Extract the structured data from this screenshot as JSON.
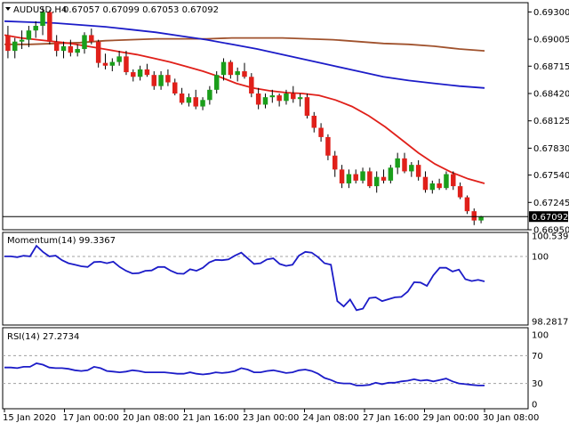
{
  "header": {
    "symbol_tf": "AUDUSD,H4",
    "ohlc": "0.67057 0.67099 0.67053 0.67092"
  },
  "price_axis": {
    "ticks": [
      "0.69300",
      "0.69005",
      "0.68715",
      "0.68420",
      "0.68125",
      "0.67830",
      "0.67540",
      "0.67245",
      "0.66950"
    ],
    "tick_values": [
      0.693,
      0.69005,
      0.68715,
      0.6842,
      0.68125,
      0.6783,
      0.6754,
      0.67245,
      0.6695
    ],
    "current_label": "0.67092",
    "current_value": 0.67092
  },
  "momentum": {
    "label": "Momentum(14) 99.3367",
    "ticks": [
      "100.5396",
      "100",
      "98.2817"
    ],
    "tick_values": [
      100.5396,
      100,
      98.2817
    ],
    "series": [
      100.0,
      100.0,
      99.98,
      100.02,
      100.0,
      100.28,
      100.12,
      100.0,
      100.02,
      99.9,
      99.82,
      99.78,
      99.74,
      99.72,
      99.85,
      99.86,
      99.82,
      99.86,
      99.72,
      99.62,
      99.55,
      99.56,
      99.62,
      99.63,
      99.72,
      99.72,
      99.62,
      99.55,
      99.54,
      99.66,
      99.62,
      99.7,
      99.84,
      99.91,
      99.9,
      99.92,
      100.02,
      100.1,
      99.95,
      99.8,
      99.82,
      99.92,
      99.95,
      99.8,
      99.75,
      99.78,
      100.02,
      100.12,
      100.1,
      99.98,
      99.82,
      99.78,
      98.82,
      98.68,
      98.86,
      98.58,
      98.62,
      98.9,
      98.92,
      98.82,
      98.87,
      98.92,
      98.93,
      99.07,
      99.32,
      99.31,
      99.22,
      99.5,
      99.7,
      99.7,
      99.6,
      99.65,
      99.4,
      99.35,
      99.38,
      99.34
    ]
  },
  "rsi": {
    "label": "RSI(14) 27.2734",
    "ticks": [
      "100",
      "70",
      "30",
      "0"
    ],
    "tick_values": [
      100,
      70,
      30,
      0
    ],
    "series": [
      53,
      53,
      52,
      54,
      54,
      59,
      57,
      53,
      52,
      52,
      51,
      49,
      48,
      49,
      54,
      52,
      48,
      47,
      46,
      47,
      49,
      48,
      46,
      46,
      46,
      46,
      45,
      44,
      44,
      46,
      44,
      43,
      44,
      46,
      45,
      46,
      48,
      52,
      50,
      46,
      46,
      48,
      49,
      47,
      45,
      46,
      49,
      50,
      48,
      44,
      38,
      35,
      31,
      30,
      30,
      27,
      27,
      28,
      31,
      29,
      31,
      31,
      33,
      34,
      36,
      34,
      35,
      33,
      35,
      37,
      33,
      30,
      29,
      28,
      27,
      27
    ]
  },
  "time_axis": [
    "15 Jan 2020",
    "17 Jan 00:00",
    "20 Jan 08:00",
    "21 Jan 16:00",
    "23 Jan 00:00",
    "24 Jan 08:00",
    "27 Jan 16:00",
    "29 Jan 00:00",
    "30 Jan 08:00"
  ],
  "colors": {
    "bull": "#1a9e1a",
    "bear": "#e0201a",
    "ma_fast": "#e0201a",
    "ma_mid": "#1c1cc8",
    "ma_slow": "#a0522d",
    "osc": "#1c1cc8",
    "grid_dash": "#a0a0a0"
  },
  "chart_data": {
    "type": "candlestick",
    "title": "AUDUSD,H4",
    "ylim": [
      0.6695,
      0.694
    ],
    "candles": [
      [
        0.6905,
        0.6915,
        0.688,
        0.6888
      ],
      [
        0.6888,
        0.6902,
        0.688,
        0.6898
      ],
      [
        0.6898,
        0.691,
        0.689,
        0.69
      ],
      [
        0.69,
        0.6915,
        0.6892,
        0.691
      ],
      [
        0.691,
        0.692,
        0.6902,
        0.6915
      ],
      [
        0.6915,
        0.6935,
        0.6905,
        0.693
      ],
      [
        0.693,
        0.6932,
        0.6895,
        0.6898
      ],
      [
        0.6898,
        0.6905,
        0.6882,
        0.6888
      ],
      [
        0.6888,
        0.6898,
        0.688,
        0.6893
      ],
      [
        0.6893,
        0.69,
        0.6882,
        0.6886
      ],
      [
        0.6886,
        0.6895,
        0.6882,
        0.689
      ],
      [
        0.689,
        0.6908,
        0.6885,
        0.6905
      ],
      [
        0.6905,
        0.6912,
        0.6895,
        0.6898
      ],
      [
        0.6898,
        0.69,
        0.687,
        0.6875
      ],
      [
        0.6875,
        0.6885,
        0.6868,
        0.6872
      ],
      [
        0.6872,
        0.688,
        0.6866,
        0.6876
      ],
      [
        0.6876,
        0.6888,
        0.6872,
        0.6882
      ],
      [
        0.6882,
        0.6888,
        0.6862,
        0.6865
      ],
      [
        0.6865,
        0.6868,
        0.6855,
        0.686
      ],
      [
        0.686,
        0.6872,
        0.6856,
        0.6868
      ],
      [
        0.6868,
        0.6874,
        0.686,
        0.6862
      ],
      [
        0.6862,
        0.6866,
        0.6846,
        0.685
      ],
      [
        0.685,
        0.6866,
        0.6846,
        0.6862
      ],
      [
        0.6862,
        0.6868,
        0.685,
        0.6854
      ],
      [
        0.6854,
        0.6858,
        0.684,
        0.6842
      ],
      [
        0.6842,
        0.6848,
        0.683,
        0.6832
      ],
      [
        0.6832,
        0.6842,
        0.6828,
        0.6838
      ],
      [
        0.6838,
        0.6846,
        0.6825,
        0.6828
      ],
      [
        0.6828,
        0.6838,
        0.6824,
        0.6835
      ],
      [
        0.6835,
        0.685,
        0.683,
        0.6846
      ],
      [
        0.6846,
        0.6866,
        0.6842,
        0.6862
      ],
      [
        0.6862,
        0.688,
        0.6856,
        0.6876
      ],
      [
        0.6876,
        0.6878,
        0.6858,
        0.6862
      ],
      [
        0.6862,
        0.687,
        0.6855,
        0.6866
      ],
      [
        0.6866,
        0.6875,
        0.6858,
        0.686
      ],
      [
        0.686,
        0.6864,
        0.6838,
        0.6842
      ],
      [
        0.6842,
        0.6848,
        0.6825,
        0.683
      ],
      [
        0.683,
        0.6842,
        0.6826,
        0.6838
      ],
      [
        0.6838,
        0.6846,
        0.6832,
        0.684
      ],
      [
        0.684,
        0.6842,
        0.6828,
        0.6834
      ],
      [
        0.6834,
        0.6846,
        0.683,
        0.6842
      ],
      [
        0.6842,
        0.685,
        0.6832,
        0.6836
      ],
      [
        0.6836,
        0.6842,
        0.6828,
        0.6838
      ],
      [
        0.6838,
        0.6842,
        0.6815,
        0.6818
      ],
      [
        0.6818,
        0.6822,
        0.68,
        0.6805
      ],
      [
        0.6805,
        0.681,
        0.679,
        0.6795
      ],
      [
        0.6795,
        0.6798,
        0.677,
        0.6775
      ],
      [
        0.6775,
        0.678,
        0.6752,
        0.676
      ],
      [
        0.676,
        0.6765,
        0.674,
        0.6745
      ],
      [
        0.6745,
        0.676,
        0.674,
        0.6755
      ],
      [
        0.6755,
        0.676,
        0.6745,
        0.6748
      ],
      [
        0.6748,
        0.6762,
        0.6745,
        0.6758
      ],
      [
        0.6758,
        0.6762,
        0.674,
        0.6742
      ],
      [
        0.6742,
        0.6758,
        0.6735,
        0.6752
      ],
      [
        0.6752,
        0.676,
        0.6745,
        0.6748
      ],
      [
        0.6748,
        0.6765,
        0.6745,
        0.6762
      ],
      [
        0.6762,
        0.6778,
        0.6755,
        0.6772
      ],
      [
        0.6772,
        0.6778,
        0.6756,
        0.6758
      ],
      [
        0.6758,
        0.6768,
        0.6752,
        0.6765
      ],
      [
        0.6765,
        0.677,
        0.6748,
        0.6752
      ],
      [
        0.6752,
        0.6758,
        0.6735,
        0.6738
      ],
      [
        0.6738,
        0.6748,
        0.6734,
        0.6745
      ],
      [
        0.6745,
        0.675,
        0.6738,
        0.674
      ],
      [
        0.674,
        0.6758,
        0.6738,
        0.6755
      ],
      [
        0.6755,
        0.6758,
        0.6738,
        0.6742
      ],
      [
        0.6742,
        0.6746,
        0.6728,
        0.673
      ],
      [
        0.673,
        0.6732,
        0.6712,
        0.6715
      ],
      [
        0.6715,
        0.6718,
        0.67,
        0.6705
      ],
      [
        0.6705,
        0.671,
        0.6702,
        0.6709
      ]
    ],
    "ma_fast": [
      0.6905,
      0.6902,
      0.69,
      0.6898,
      0.6896,
      0.6893,
      0.689,
      0.6887,
      0.6884,
      0.688,
      0.6876,
      0.6871,
      0.6866,
      0.686,
      0.6853,
      0.6848,
      0.6845,
      0.6843,
      0.6842,
      0.684,
      0.6835,
      0.6828,
      0.6818,
      0.6806,
      0.6792,
      0.6778,
      0.6766,
      0.6757,
      0.675,
      0.6745
    ],
    "ma_mid": [
      0.692,
      0.6919,
      0.6918,
      0.6916,
      0.6914,
      0.6911,
      0.6908,
      0.6904,
      0.69,
      0.6895,
      0.689,
      0.6884,
      0.6878,
      0.6872,
      0.6866,
      0.686,
      0.6856,
      0.6853,
      0.685,
      0.6848
    ],
    "ma_slow": [
      0.6895,
      0.6895,
      0.6896,
      0.6897,
      0.6899,
      0.69,
      0.6901,
      0.6901,
      0.6901,
      0.6902,
      0.6902,
      0.6902,
      0.6901,
      0.69,
      0.6898,
      0.6896,
      0.6895,
      0.6893,
      0.689,
      0.6888
    ],
    "xlabels": [
      "15 Jan 2020",
      "17 Jan 00:00",
      "20 Jan 08:00",
      "21 Jan 16:00",
      "23 Jan 00:00",
      "24 Jan 08:00",
      "27 Jan 16:00",
      "29 Jan 00:00",
      "30 Jan 08:00"
    ]
  }
}
